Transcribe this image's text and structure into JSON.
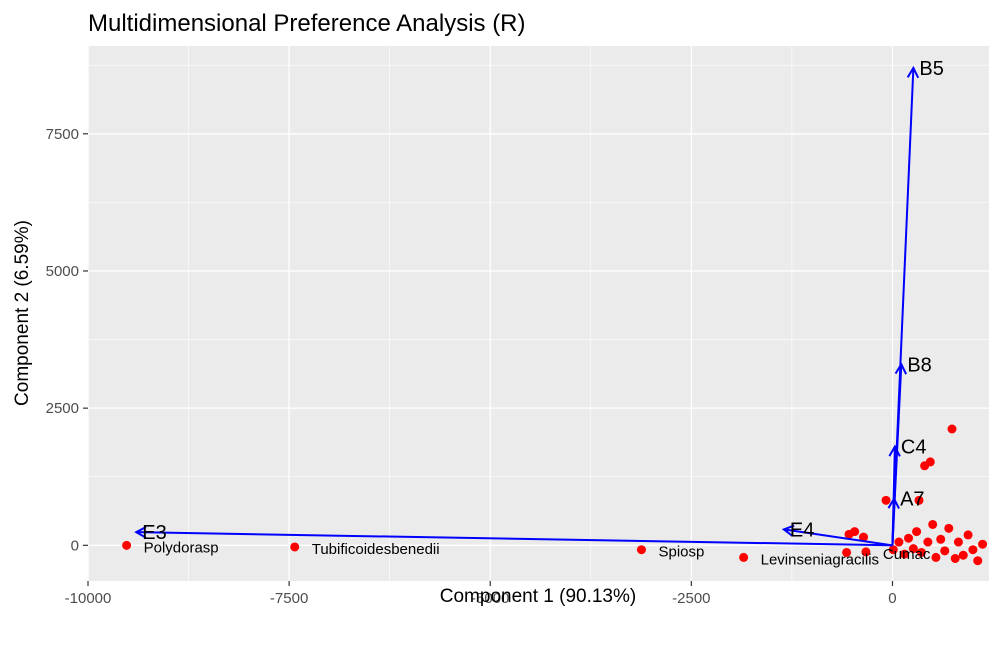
{
  "chart_data": {
    "type": "scatter",
    "title": "Multidimensional Preference Analysis (R)",
    "xlabel": "Component 1 (90.13%)",
    "ylabel": "Component 2 (6.59%)",
    "xlim": [
      -10000,
      1200
    ],
    "ylim": [
      -650,
      9100
    ],
    "x_ticks": [
      -10000,
      -7500,
      -5000,
      -2500,
      0
    ],
    "x_tick_labels": [
      "-10000",
      "-7500",
      "-5000",
      "-2500",
      "0"
    ],
    "y_ticks": [
      0,
      2500,
      5000,
      7500
    ],
    "y_tick_labels": [
      "0",
      "2500",
      "5000",
      "7500"
    ],
    "grid": true,
    "point_color": "#ff0000",
    "arrow_color": "#0000ff",
    "panel_background": "#ebebeb",
    "points": [
      {
        "label": "Polydorasp",
        "x": -9520,
        "y": 0
      },
      {
        "label": "Tubificoidesbenedii",
        "x": -7430,
        "y": -30
      },
      {
        "label": "Spiosp",
        "x": -3120,
        "y": -80
      },
      {
        "label": "Levinseniagracilis",
        "x": -1850,
        "y": -220
      },
      {
        "label": "",
        "x": -570,
        "y": -130
      },
      {
        "label": "",
        "x": -540,
        "y": 200
      },
      {
        "label": "",
        "x": -470,
        "y": 250
      },
      {
        "label": "",
        "x": -360,
        "y": 150
      },
      {
        "label": "Cumac",
        "x": -330,
        "y": -120
      },
      {
        "label": "",
        "x": -80,
        "y": 820
      },
      {
        "label": "",
        "x": 10,
        "y": -80
      },
      {
        "label": "",
        "x": 80,
        "y": 60
      },
      {
        "label": "",
        "x": 150,
        "y": -160
      },
      {
        "label": "",
        "x": 200,
        "y": 130
      },
      {
        "label": "",
        "x": 260,
        "y": -60
      },
      {
        "label": "",
        "x": 300,
        "y": 250
      },
      {
        "label": "",
        "x": 330,
        "y": 820
      },
      {
        "label": "",
        "x": 360,
        "y": -130
      },
      {
        "label": "",
        "x": 400,
        "y": 1450
      },
      {
        "label": "",
        "x": 440,
        "y": 60
      },
      {
        "label": "",
        "x": 470,
        "y": 1520
      },
      {
        "label": "",
        "x": 500,
        "y": 380
      },
      {
        "label": "",
        "x": 540,
        "y": -220
      },
      {
        "label": "",
        "x": 600,
        "y": 110
      },
      {
        "label": "",
        "x": 650,
        "y": -100
      },
      {
        "label": "",
        "x": 700,
        "y": 310
      },
      {
        "label": "",
        "x": 740,
        "y": 2120
      },
      {
        "label": "",
        "x": 780,
        "y": -240
      },
      {
        "label": "",
        "x": 820,
        "y": 60
      },
      {
        "label": "",
        "x": 880,
        "y": -180
      },
      {
        "label": "",
        "x": 940,
        "y": 190
      },
      {
        "label": "",
        "x": 1000,
        "y": -80
      },
      {
        "label": "",
        "x": 1060,
        "y": -280
      },
      {
        "label": "",
        "x": 1120,
        "y": 20
      }
    ],
    "arrows": [
      {
        "label": "B5",
        "x": 260,
        "y": 8700
      },
      {
        "label": "B8",
        "x": 110,
        "y": 3300
      },
      {
        "label": "C4",
        "x": 30,
        "y": 1800
      },
      {
        "label": "A7",
        "x": 20,
        "y": 850
      },
      {
        "label": "E3",
        "x": -9400,
        "y": 240
      },
      {
        "label": "E4",
        "x": -1350,
        "y": 290
      }
    ]
  }
}
